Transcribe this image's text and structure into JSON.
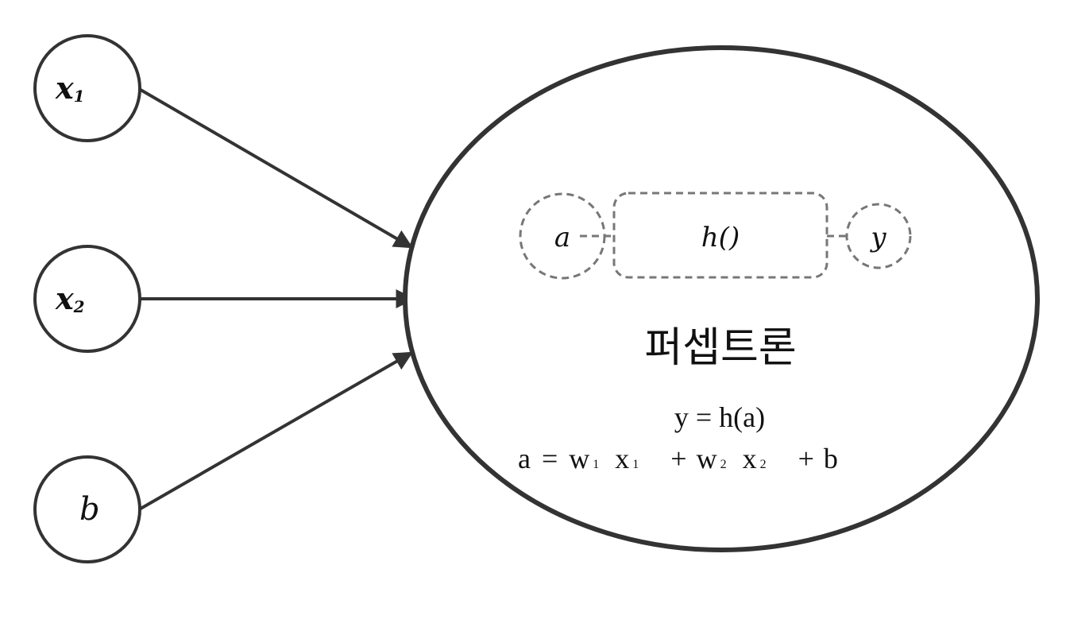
{
  "inputs": {
    "x1": {
      "main": "x",
      "sub": "1"
    },
    "x2": {
      "main": "x",
      "sub": "2"
    },
    "b": {
      "main": "b"
    }
  },
  "perceptron": {
    "a_label": "a",
    "h_label": "h()",
    "y_label": "y",
    "title": "퍼셉트론",
    "eq1": "y = h(a)",
    "eq2": {
      "a": "a",
      "eq": "=",
      "w": "w",
      "x": "x",
      "plus": "+",
      "b": "b",
      "sub1": "1",
      "sub2": "2"
    }
  },
  "colors": {
    "stroke": "#333333",
    "dashed": "#777777",
    "text": "#111111"
  }
}
